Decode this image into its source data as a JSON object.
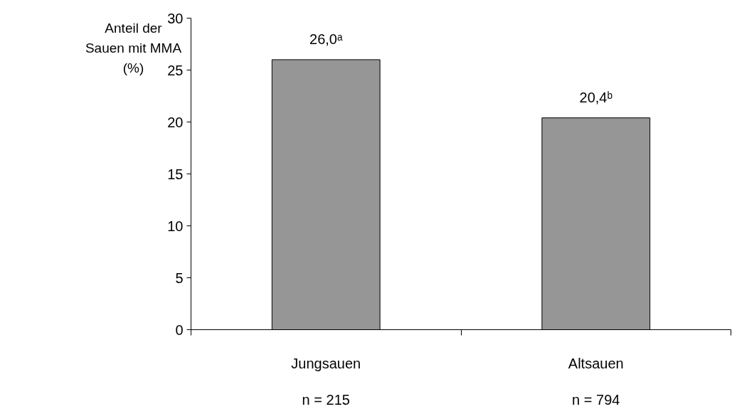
{
  "chart_data": {
    "type": "bar",
    "ylabel": "Anteil der Sauen mit MMA (%)",
    "categories": [
      "Jungsauen",
      "Altsauen"
    ],
    "values": [
      26.0,
      20.4
    ],
    "value_labels": [
      "26,0ᵃ",
      "20,4ᵇ"
    ],
    "color": "#969696",
    "ylim": [
      0,
      30
    ],
    "yticks": [
      0,
      5,
      10,
      15,
      20,
      25,
      30
    ],
    "grid": false,
    "annotations": [
      "n = 215",
      "n = 794"
    ]
  }
}
